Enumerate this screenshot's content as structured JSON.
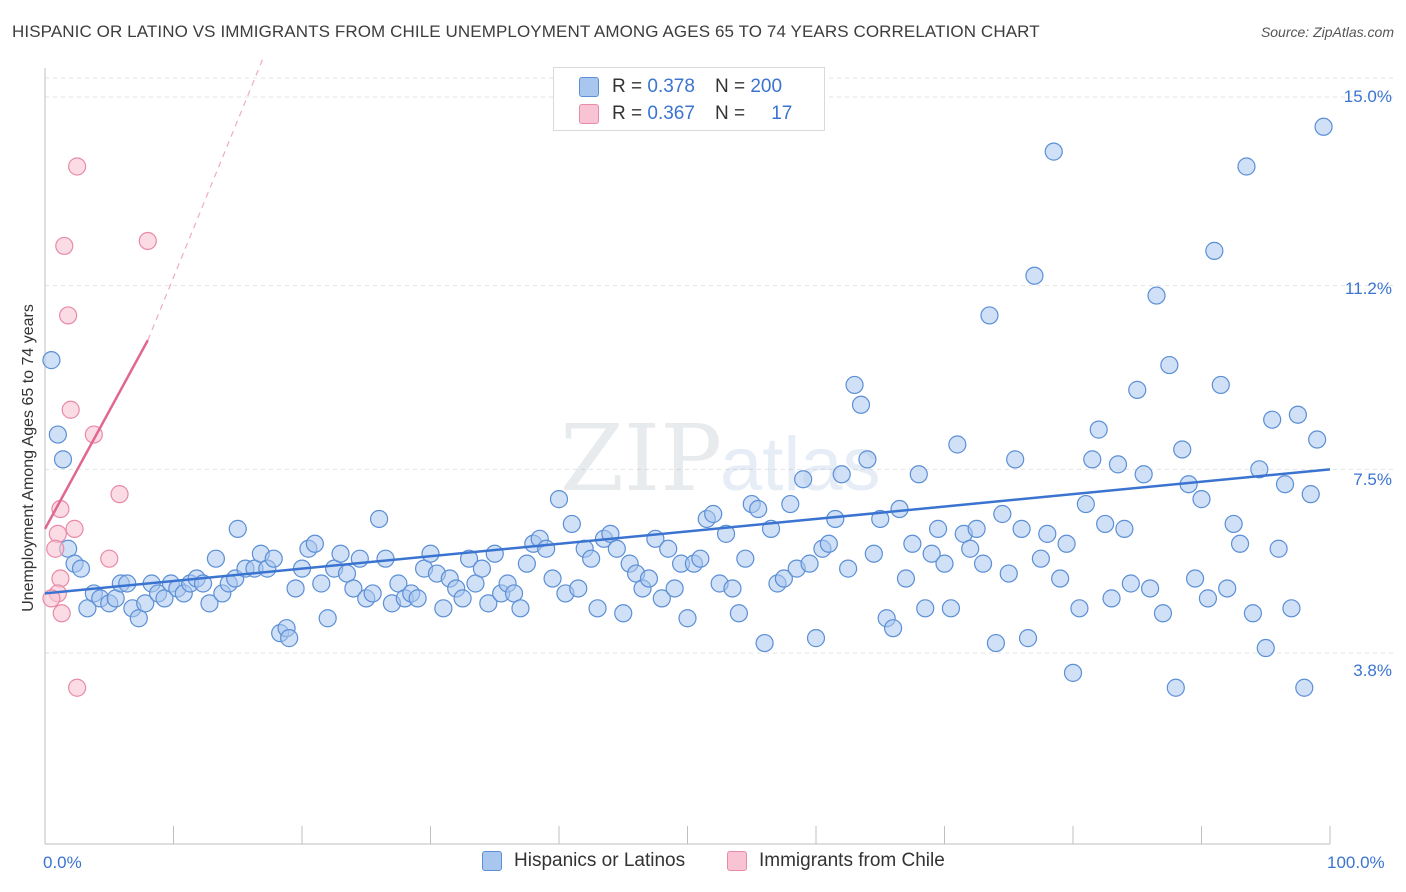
{
  "header": {
    "title": "HISPANIC OR LATINO VS IMMIGRANTS FROM CHILE UNEMPLOYMENT AMONG AGES 65 TO 74 YEARS CORRELATION CHART",
    "source": "Source: ZipAtlas.com"
  },
  "legend": {
    "row1": {
      "r_label": "R =",
      "r_value": "0.378",
      "n_label": "N =",
      "n_value": "200"
    },
    "row2": {
      "r_label": "R =",
      "r_value": "0.367",
      "n_label": "N =",
      "n_value": "17"
    }
  },
  "colors": {
    "blue_fill": "#a9c6ee",
    "blue_stroke": "#5b8fd6",
    "blue_line": "#3b74d0",
    "pink_fill": "#f8c4d3",
    "pink_stroke": "#e88aa8",
    "pink_line": "#e0678f",
    "tick_text": "#3b74d0",
    "grid": "#e3e3e3"
  },
  "chart_data": {
    "type": "scatter",
    "xlabel": "",
    "ylabel": "Unemployment Among Ages 65 to 74 years",
    "x_tick_labels": [
      "0.0%",
      "100.0%"
    ],
    "y_tick_labels": [
      "3.8%",
      "7.5%",
      "11.2%",
      "15.0%"
    ],
    "y_ticks": [
      3.8,
      7.5,
      11.2,
      15.0
    ],
    "xlim": [
      0,
      100
    ],
    "ylim": [
      0,
      15.8
    ],
    "grid": "horizontal dashed",
    "legend_position": "top-center",
    "watermark": "ZIPatlas",
    "series": [
      {
        "name": "Hispanics or Latinos",
        "color": "#a9c6ee",
        "r": 0.378,
        "n": 200,
        "trend": {
          "x": [
            0,
            100
          ],
          "y": [
            5.0,
            7.5
          ]
        },
        "points": [
          [
            0.5,
            9.7
          ],
          [
            1,
            8.2
          ],
          [
            1.4,
            7.7
          ],
          [
            1.8,
            5.9
          ],
          [
            2.3,
            5.6
          ],
          [
            2.8,
            5.5
          ],
          [
            3.3,
            4.7
          ],
          [
            3.8,
            5.0
          ],
          [
            4.3,
            4.9
          ],
          [
            5,
            4.8
          ],
          [
            5.5,
            4.9
          ],
          [
            5.9,
            5.2
          ],
          [
            6.4,
            5.2
          ],
          [
            6.8,
            4.7
          ],
          [
            7.3,
            4.5
          ],
          [
            7.8,
            4.8
          ],
          [
            8.3,
            5.2
          ],
          [
            8.8,
            5.0
          ],
          [
            9.3,
            4.9
          ],
          [
            9.8,
            5.2
          ],
          [
            10.3,
            5.1
          ],
          [
            10.8,
            5.0
          ],
          [
            11.3,
            5.2
          ],
          [
            11.8,
            5.3
          ],
          [
            12.3,
            5.2
          ],
          [
            12.8,
            4.8
          ],
          [
            13.3,
            5.7
          ],
          [
            13.8,
            5.0
          ],
          [
            14.3,
            5.2
          ],
          [
            14.8,
            5.3
          ],
          [
            15,
            6.3
          ],
          [
            15.6,
            5.5
          ],
          [
            16.3,
            5.5
          ],
          [
            16.8,
            5.8
          ],
          [
            17.3,
            5.5
          ],
          [
            17.8,
            5.7
          ],
          [
            18.3,
            4.2
          ],
          [
            18.8,
            4.3
          ],
          [
            19,
            4.1
          ],
          [
            19.5,
            5.1
          ],
          [
            20,
            5.5
          ],
          [
            20.5,
            5.9
          ],
          [
            21,
            6.0
          ],
          [
            21.5,
            5.2
          ],
          [
            22,
            4.5
          ],
          [
            22.5,
            5.5
          ],
          [
            23,
            5.8
          ],
          [
            23.5,
            5.4
          ],
          [
            24,
            5.1
          ],
          [
            24.5,
            5.7
          ],
          [
            25,
            4.9
          ],
          [
            25.5,
            5.0
          ],
          [
            26,
            6.5
          ],
          [
            26.5,
            5.7
          ],
          [
            27,
            4.8
          ],
          [
            27.5,
            5.2
          ],
          [
            28,
            4.9
          ],
          [
            28.5,
            5.0
          ],
          [
            29,
            4.9
          ],
          [
            29.5,
            5.5
          ],
          [
            30,
            5.8
          ],
          [
            30.5,
            5.4
          ],
          [
            31,
            4.7
          ],
          [
            31.5,
            5.3
          ],
          [
            32,
            5.1
          ],
          [
            32.5,
            4.9
          ],
          [
            33,
            5.7
          ],
          [
            33.5,
            5.2
          ],
          [
            34,
            5.5
          ],
          [
            34.5,
            4.8
          ],
          [
            35,
            5.8
          ],
          [
            35.5,
            5.0
          ],
          [
            36,
            5.2
          ],
          [
            36.5,
            5.0
          ],
          [
            37,
            4.7
          ],
          [
            37.5,
            5.6
          ],
          [
            38,
            6.0
          ],
          [
            38.5,
            6.1
          ],
          [
            39,
            5.9
          ],
          [
            39.5,
            5.3
          ],
          [
            40,
            6.9
          ],
          [
            40.5,
            5.0
          ],
          [
            41,
            6.4
          ],
          [
            41.5,
            5.1
          ],
          [
            42,
            5.9
          ],
          [
            42.5,
            5.7
          ],
          [
            43,
            4.7
          ],
          [
            43.5,
            6.1
          ],
          [
            44,
            6.2
          ],
          [
            44.5,
            5.9
          ],
          [
            45,
            4.6
          ],
          [
            45.5,
            5.6
          ],
          [
            46,
            5.4
          ],
          [
            46.5,
            5.1
          ],
          [
            47,
            5.3
          ],
          [
            47.5,
            6.1
          ],
          [
            48,
            4.9
          ],
          [
            48.5,
            5.9
          ],
          [
            49,
            5.1
          ],
          [
            49.5,
            5.6
          ],
          [
            50,
            4.5
          ],
          [
            50.5,
            5.6
          ],
          [
            51,
            5.7
          ],
          [
            51.5,
            6.5
          ],
          [
            52,
            6.6
          ],
          [
            52.5,
            5.2
          ],
          [
            53,
            6.2
          ],
          [
            53.5,
            5.1
          ],
          [
            54,
            4.6
          ],
          [
            54.5,
            5.7
          ],
          [
            55,
            6.8
          ],
          [
            55.5,
            6.7
          ],
          [
            56,
            4.0
          ],
          [
            56.5,
            6.3
          ],
          [
            57,
            5.2
          ],
          [
            57.5,
            5.3
          ],
          [
            58,
            6.8
          ],
          [
            58.5,
            5.5
          ],
          [
            59,
            7.3
          ],
          [
            59.5,
            5.6
          ],
          [
            60,
            4.1
          ],
          [
            60.5,
            5.9
          ],
          [
            61,
            6.0
          ],
          [
            61.5,
            6.5
          ],
          [
            62,
            7.4
          ],
          [
            62.5,
            5.5
          ],
          [
            63,
            9.2
          ],
          [
            63.5,
            8.8
          ],
          [
            64,
            7.7
          ],
          [
            64.5,
            5.8
          ],
          [
            65,
            6.5
          ],
          [
            65.5,
            4.5
          ],
          [
            66,
            4.3
          ],
          [
            66.5,
            6.7
          ],
          [
            67,
            5.3
          ],
          [
            67.5,
            6.0
          ],
          [
            68,
            7.4
          ],
          [
            68.5,
            4.7
          ],
          [
            69,
            5.8
          ],
          [
            69.5,
            6.3
          ],
          [
            70,
            5.6
          ],
          [
            70.5,
            4.7
          ],
          [
            71,
            8.0
          ],
          [
            71.5,
            6.2
          ],
          [
            72,
            5.9
          ],
          [
            72.5,
            6.3
          ],
          [
            73,
            5.6
          ],
          [
            73.5,
            10.6
          ],
          [
            74,
            4.0
          ],
          [
            74.5,
            6.6
          ],
          [
            75,
            5.4
          ],
          [
            75.5,
            7.7
          ],
          [
            76,
            6.3
          ],
          [
            76.5,
            4.1
          ],
          [
            77,
            11.4
          ],
          [
            77.5,
            5.7
          ],
          [
            78,
            6.2
          ],
          [
            78.5,
            13.9
          ],
          [
            79,
            5.3
          ],
          [
            79.5,
            6.0
          ],
          [
            80,
            3.4
          ],
          [
            80.5,
            4.7
          ],
          [
            81,
            6.8
          ],
          [
            81.5,
            7.7
          ],
          [
            82,
            8.3
          ],
          [
            82.5,
            6.4
          ],
          [
            83,
            4.9
          ],
          [
            83.5,
            7.6
          ],
          [
            84,
            6.3
          ],
          [
            84.5,
            5.2
          ],
          [
            85,
            9.1
          ],
          [
            85.5,
            7.4
          ],
          [
            86,
            5.1
          ],
          [
            86.5,
            11.0
          ],
          [
            87,
            4.6
          ],
          [
            87.5,
            9.6
          ],
          [
            88,
            3.1
          ],
          [
            88.5,
            7.9
          ],
          [
            89,
            7.2
          ],
          [
            89.5,
            5.3
          ],
          [
            90,
            6.9
          ],
          [
            90.5,
            4.9
          ],
          [
            91,
            11.9
          ],
          [
            91.5,
            9.2
          ],
          [
            92,
            5.1
          ],
          [
            92.5,
            6.4
          ],
          [
            93,
            6.0
          ],
          [
            93.5,
            13.6
          ],
          [
            94,
            4.6
          ],
          [
            94.5,
            7.5
          ],
          [
            95,
            3.9
          ],
          [
            95.5,
            8.5
          ],
          [
            96,
            5.9
          ],
          [
            96.5,
            7.2
          ],
          [
            97,
            4.7
          ],
          [
            97.5,
            8.6
          ],
          [
            98,
            3.1
          ],
          [
            98.5,
            7.0
          ],
          [
            99,
            8.1
          ],
          [
            99.5,
            14.4
          ]
        ]
      },
      {
        "name": "Immigrants from Chile",
        "color": "#f8c4d3",
        "r": 0.367,
        "n": 17,
        "trend": {
          "x": [
            0,
            8
          ],
          "y": [
            6.3,
            10.1
          ],
          "dashed_to": [
            17,
            15.8
          ]
        },
        "points": [
          [
            2.5,
            13.6
          ],
          [
            1.5,
            12.0
          ],
          [
            8,
            12.1
          ],
          [
            1.8,
            10.6
          ],
          [
            2,
            8.7
          ],
          [
            3.8,
            8.2
          ],
          [
            5.8,
            7.0
          ],
          [
            1.2,
            6.7
          ],
          [
            1,
            6.2
          ],
          [
            2.3,
            6.3
          ],
          [
            0.8,
            5.9
          ],
          [
            5,
            5.7
          ],
          [
            1.2,
            5.3
          ],
          [
            1,
            5.0
          ],
          [
            0.5,
            4.9
          ],
          [
            1.3,
            4.6
          ],
          [
            2.5,
            3.1
          ]
        ]
      }
    ]
  },
  "bottom_legend": {
    "item1": "Hispanics or Latinos",
    "item2": "Immigrants from Chile"
  }
}
